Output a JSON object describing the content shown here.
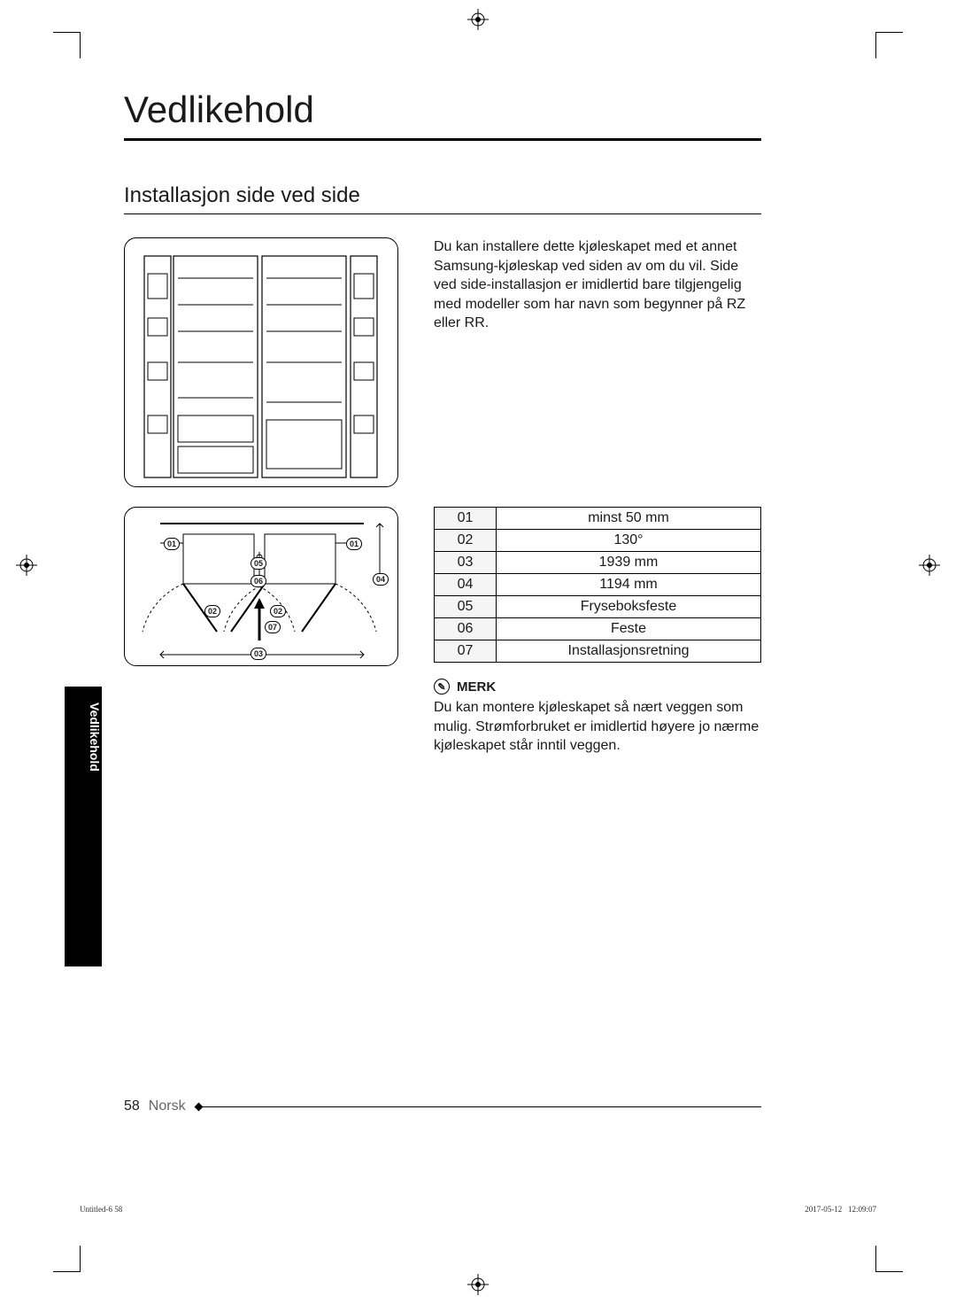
{
  "title": "Vedlikehold",
  "section": "Installasjon side ved side",
  "intro": "Du kan installere dette kjøleskapet med et annet Samsung-kjøleskap ved siden av om du vil. Side ved side-installasjon er imidlertid bare tilgjengelig med modeller som har navn som begynner på RZ eller RR.",
  "spec_rows": [
    {
      "n": "01",
      "v": "minst 50 mm"
    },
    {
      "n": "02",
      "v": "130°"
    },
    {
      "n": "03",
      "v": "1939 mm"
    },
    {
      "n": "04",
      "v": "1194 mm"
    },
    {
      "n": "05",
      "v": "Fryseboksfeste"
    },
    {
      "n": "06",
      "v": "Feste"
    },
    {
      "n": "07",
      "v": "Installasjonsretning"
    }
  ],
  "note": {
    "label": "MERK",
    "text": "Du kan montere kjøleskapet så nært veggen som mulig. Strømforbruket er imidlertid høyere jo nærme kjøleskapet står inntil veggen."
  },
  "side_tab": "Vedlikehold",
  "footer": {
    "num": "58",
    "lang": "Norsk"
  },
  "meta_left": "Untitled-6   58",
  "meta_right": "2017-05-12     12:09:07",
  "callouts": [
    "01",
    "01",
    "02",
    "02",
    "03",
    "04",
    "05",
    "06",
    "07"
  ],
  "colors": {
    "text": "#1a1a1a",
    "muted": "#666666",
    "callout_bg": "#ffffff"
  }
}
